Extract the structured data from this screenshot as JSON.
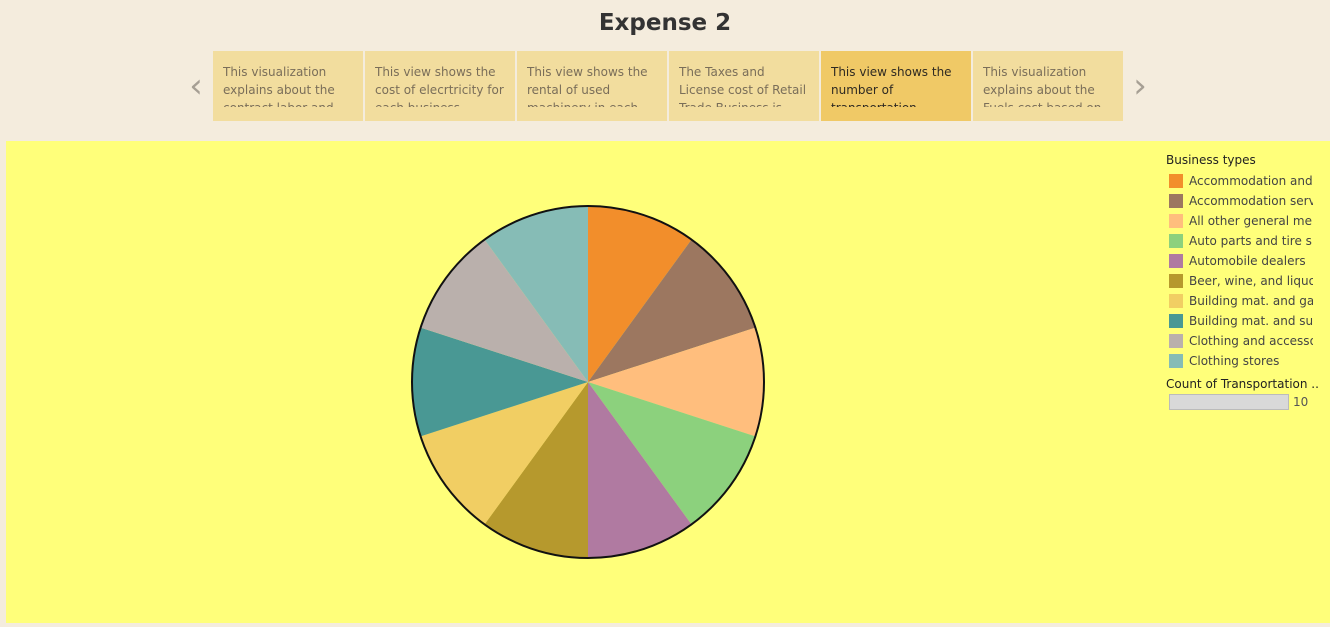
{
  "title": "Expense 2",
  "nav": {
    "prev_icon": "chevron-left-icon",
    "next_icon": "chevron-right-icon"
  },
  "story_points": [
    {
      "text": "This visualization explains about the contract labor and",
      "active": false
    },
    {
      "text": "This view shows the cost of elecrtricity for each business.",
      "active": false
    },
    {
      "text": "This view shows the rental of used machinery in each",
      "active": false
    },
    {
      "text": "The Taxes and License cost of Retail Trade Business is more than",
      "active": false
    },
    {
      "text": "This view shows the number of transportation",
      "active": true
    },
    {
      "text": "This visualization explains about the Fuels cost based on",
      "active": false
    }
  ],
  "legend": {
    "title": "Business types",
    "size_title": "Count of Transportation ..",
    "size_value": "10"
  },
  "chart_data": {
    "type": "pie",
    "categories": [
      "Accommodation and ..",
      "Accommodation serv..",
      "All other general me..",
      "Auto parts and tire s..",
      "Automobile dealers",
      "Beer, wine, and liquo..",
      "Building mat. and ga..",
      "Building mat. and su..",
      "Clothing and accesso..",
      "Clothing stores"
    ],
    "values": [
      1,
      1,
      1,
      1,
      1,
      1,
      1,
      1,
      1,
      1
    ],
    "colors": [
      "#f28e2b",
      "#9c7760",
      "#ffbe7d",
      "#8cd17d",
      "#b07aa1",
      "#b6992d",
      "#f1ce63",
      "#499894",
      "#bab0ac",
      "#86bcb6"
    ],
    "legend_position": "right"
  }
}
